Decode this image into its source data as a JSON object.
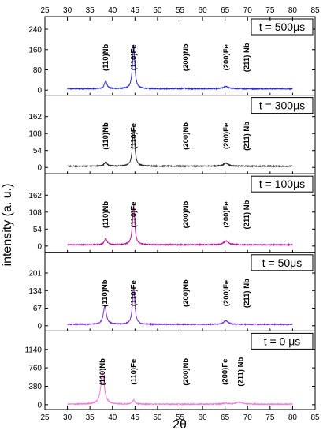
{
  "chart_data": {
    "type": "line",
    "xlabel": "2θ",
    "ylabel": "intensity (a. u.)",
    "xlim": [
      25,
      85
    ],
    "x_ticks": [
      25,
      30,
      35,
      40,
      45,
      50,
      55,
      60,
      65,
      70,
      75,
      80,
      85
    ],
    "x_range_data": [
      30,
      80
    ],
    "grid": false,
    "panels": [
      {
        "label": "t = 500μs",
        "color": "#2b2bd4",
        "ylim": [
          -20,
          290
        ],
        "yticks": [
          0,
          80,
          160,
          240
        ],
        "baseline": 5,
        "peaks": [
          {
            "x": 38.5,
            "height": 30,
            "width": 0.35
          },
          {
            "x": 44.7,
            "height": 172,
            "width": 0.3
          },
          {
            "x": 65.2,
            "height": 10,
            "width": 0.6
          },
          {
            "x": 56.0,
            "height": 2,
            "width": 0.5
          }
        ],
        "annotations": [
          {
            "text": "(110)Nb",
            "x": 38.5
          },
          {
            "text": "(110)Fe",
            "x": 44.7
          },
          {
            "text": "(200)Nb",
            "x": 56.3
          },
          {
            "text": "(200)Fe",
            "x": 65.2
          },
          {
            "text": "(211) Nb",
            "x": 69.8
          }
        ]
      },
      {
        "label": "t = 300μs",
        "color": "#2a2a2a",
        "ylim": [
          -20,
          230
        ],
        "yticks": [
          0,
          54,
          108,
          162
        ],
        "baseline": 4,
        "peaks": [
          {
            "x": 38.5,
            "height": 14,
            "width": 0.35
          },
          {
            "x": 44.7,
            "height": 124,
            "width": 0.3
          },
          {
            "x": 65.2,
            "height": 10,
            "width": 0.6
          }
        ],
        "annotations": [
          {
            "text": "(110)Nb",
            "x": 38.5
          },
          {
            "text": "(110)Fe",
            "x": 44.7
          },
          {
            "text": "(200)Nb",
            "x": 56.3
          },
          {
            "text": "(200)Fe",
            "x": 65.2
          },
          {
            "text": "(211) Nb",
            "x": 69.8
          }
        ]
      },
      {
        "label": "t = 100μs",
        "color": "#c0139a",
        "ylim": [
          -20,
          230
        ],
        "yticks": [
          0,
          54,
          108,
          162
        ],
        "baseline": 4,
        "peaks": [
          {
            "x": 38.5,
            "height": 20,
            "width": 0.35
          },
          {
            "x": 44.7,
            "height": 124,
            "width": 0.3
          },
          {
            "x": 65.2,
            "height": 12,
            "width": 0.6
          }
        ],
        "annotations": [
          {
            "text": "(110)Nb",
            "x": 38.5
          },
          {
            "text": "(110)Fe",
            "x": 44.7
          },
          {
            "text": "(200)Nb",
            "x": 56.3
          },
          {
            "text": "(200)Fe",
            "x": 65.2
          },
          {
            "text": "(211) Nb",
            "x": 69.8
          }
        ]
      },
      {
        "label": "t = 50μs",
        "color": "#7b2fc8",
        "ylim": [
          -20,
          280
        ],
        "yticks": [
          0,
          67,
          134,
          201
        ],
        "baseline": 5,
        "peaks": [
          {
            "x": 38.3,
            "height": 70,
            "width": 0.4
          },
          {
            "x": 44.7,
            "height": 146,
            "width": 0.3
          },
          {
            "x": 65.2,
            "height": 14,
            "width": 0.6
          }
        ],
        "annotations": [
          {
            "text": "(110)Nb",
            "x": 38.3
          },
          {
            "text": "(110)Fe",
            "x": 44.7
          },
          {
            "text": "(200)Nb",
            "x": 56.3
          },
          {
            "text": "(200)Fe",
            "x": 65.2
          },
          {
            "text": "(211) Nb",
            "x": 69.8
          }
        ]
      },
      {
        "label": "t = 0 μs",
        "color": "#f27ad8",
        "ylim": [
          -100,
          1520
        ],
        "yticks": [
          0,
          380,
          760,
          1140
        ],
        "baseline": 10,
        "peaks": [
          {
            "x": 37.8,
            "height": 660,
            "width": 0.45
          },
          {
            "x": 44.7,
            "height": 90,
            "width": 0.3
          },
          {
            "x": 68.2,
            "height": 40,
            "width": 0.9
          },
          {
            "x": 65.0,
            "height": 18,
            "width": 0.8
          }
        ],
        "annotations": [
          {
            "text": "(110)Nb",
            "x": 37.8
          },
          {
            "text": "(110)Fe",
            "x": 44.7
          },
          {
            "text": "(200)Nb",
            "x": 56.3
          },
          {
            "text": "(200)Fe",
            "x": 65.0
          },
          {
            "text": "(211) Nb",
            "x": 68.5
          }
        ]
      }
    ]
  }
}
